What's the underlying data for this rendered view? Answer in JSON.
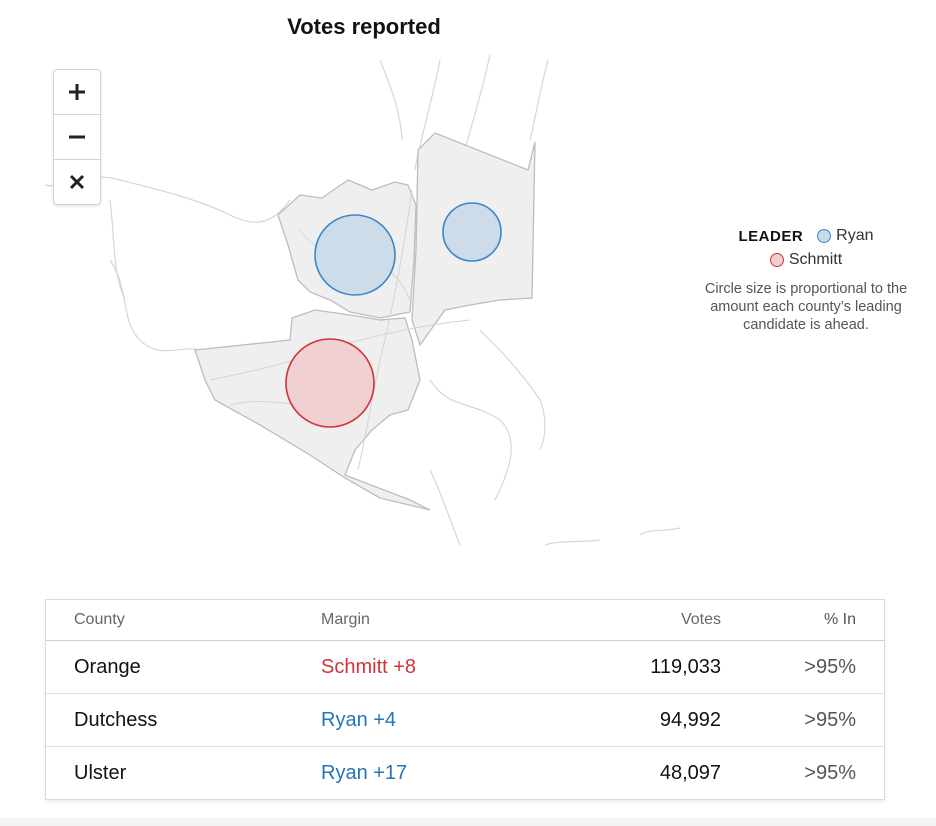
{
  "header": {
    "title": "Votes reported"
  },
  "map": {
    "zoom_controls": {
      "zoom_in": "+",
      "zoom_out": "−",
      "reset": "×"
    },
    "counties": [
      {
        "name": "Orange",
        "leader": "Schmitt",
        "color": "#d0343a"
      },
      {
        "name": "Dutchess",
        "leader": "Ryan",
        "color": "#3d86c6"
      },
      {
        "name": "Ulster",
        "leader": "Ryan",
        "color": "#3d86c6"
      }
    ]
  },
  "legend": {
    "heading": "LEADER",
    "items": [
      {
        "label": "Ryan",
        "color": "#3d86c6"
      },
      {
        "label": "Schmitt",
        "color": "#d0343a"
      }
    ],
    "note": "Circle size is proportional to the amount each county’s leading candidate is ahead."
  },
  "table": {
    "headers": {
      "county": "County",
      "margin": "Margin",
      "votes": "Votes",
      "pct_in": "% In"
    },
    "rows": [
      {
        "county": "Orange",
        "margin": "Schmitt +8",
        "votes": "119,033",
        "pct_in": ">95%"
      },
      {
        "county": "Dutchess",
        "margin": "Ryan +4",
        "votes": "94,992",
        "pct_in": ">95%"
      },
      {
        "county": "Ulster",
        "margin": "Ryan +17",
        "votes": "48,097",
        "pct_in": ">95%"
      }
    ]
  },
  "colors": {
    "ryan": "#3d86c6",
    "schmitt": "#d0343a",
    "county_fill": "#efefef"
  }
}
